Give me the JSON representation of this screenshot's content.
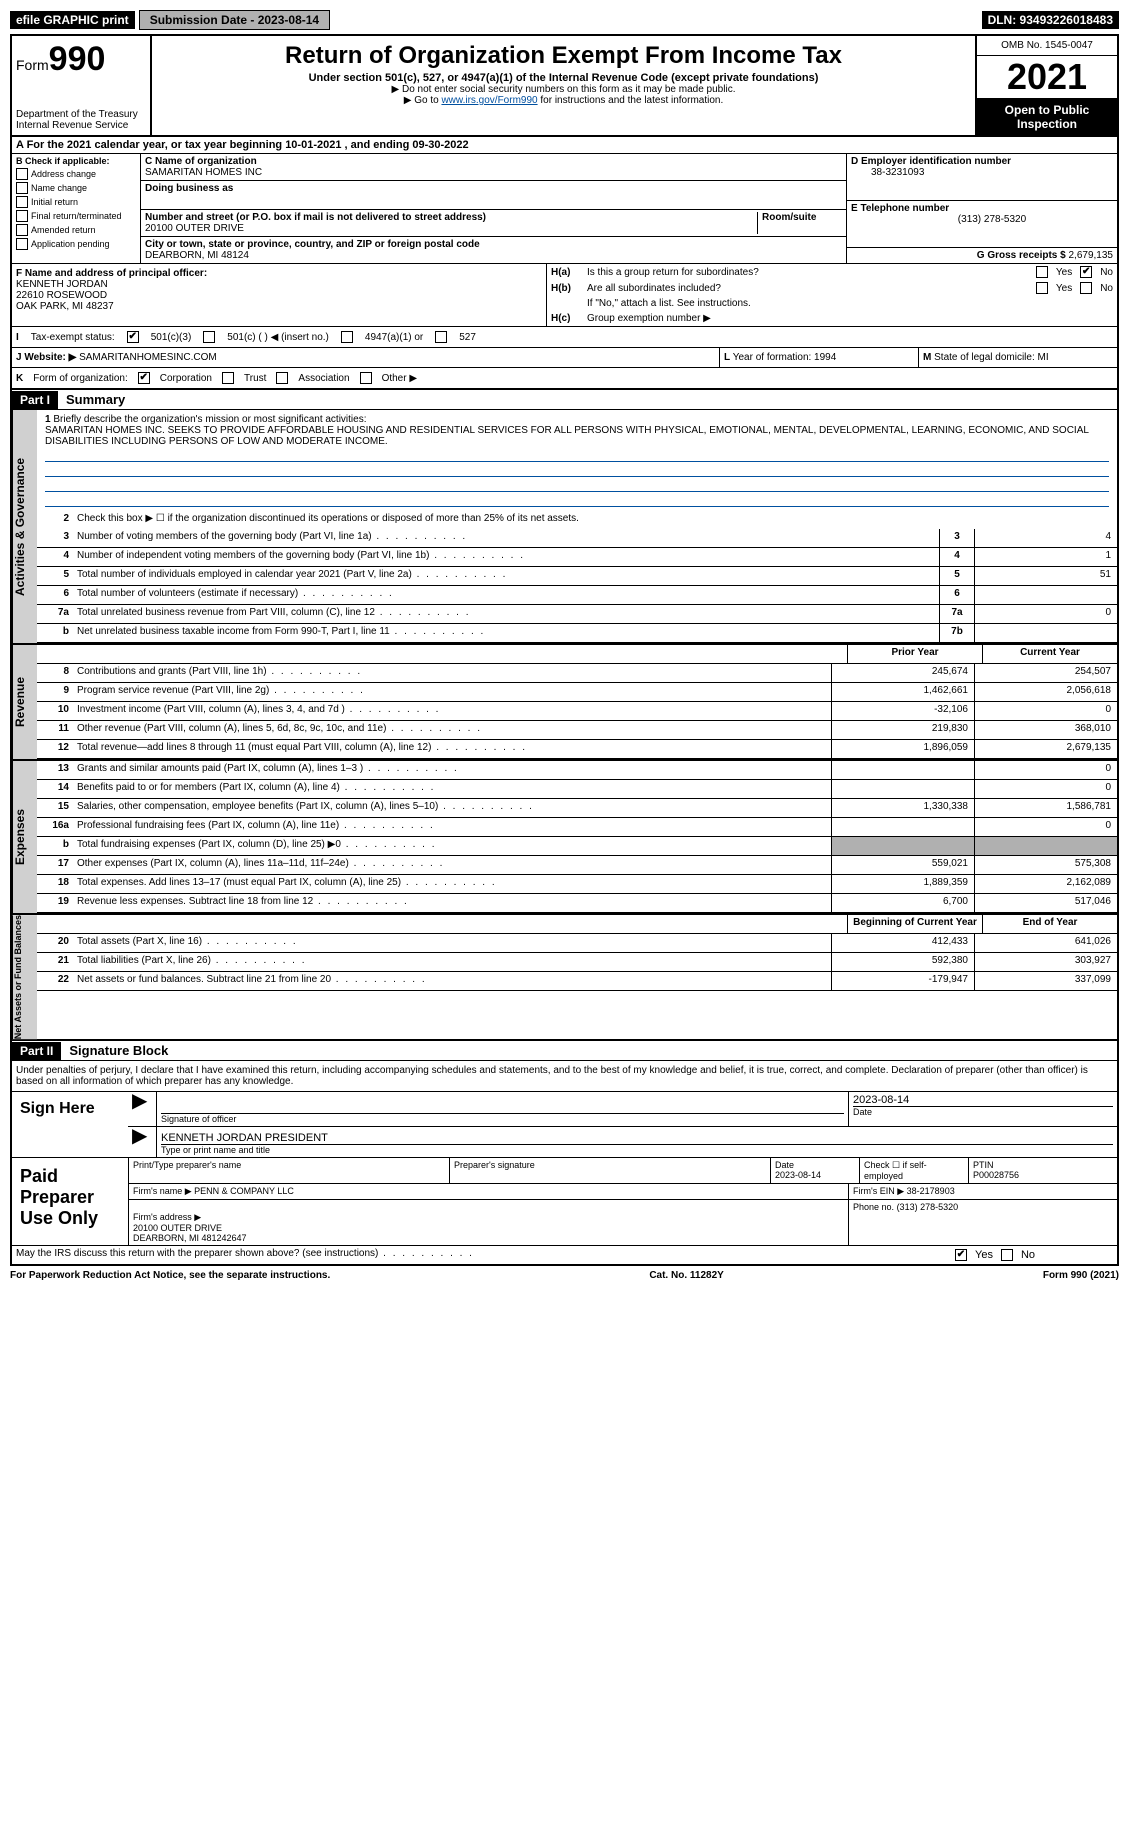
{
  "topbar": {
    "efile": "efile GRAPHIC print",
    "submit_btn": "Submission Date - 2023-08-14",
    "dln": "DLN: 93493226018483"
  },
  "header": {
    "form_word": "Form",
    "form_num": "990",
    "dept": "Department of the Treasury\nInternal Revenue Service",
    "title": "Return of Organization Exempt From Income Tax",
    "subtitle": "Under section 501(c), 527, or 4947(a)(1) of the Internal Revenue Code (except private foundations)",
    "note1": "▶ Do not enter social security numbers on this form as it may be made public.",
    "note2_pre": "▶ Go to ",
    "note2_link": "www.irs.gov/Form990",
    "note2_post": " for instructions and the latest information.",
    "omb": "OMB No. 1545-0047",
    "year": "2021",
    "inspection": "Open to Public Inspection"
  },
  "period": "A For the 2021 calendar year, or tax year beginning 10-01-2021     , and ending 09-30-2022",
  "box_b": {
    "legend": "B Check if applicable:",
    "items": [
      "Address change",
      "Name change",
      "Initial return",
      "Final return/terminated",
      "Amended return",
      "Application pending"
    ]
  },
  "box_c": {
    "name_label": "C Name of organization",
    "name": "SAMARITAN HOMES INC",
    "dba_label": "Doing business as",
    "addr_label": "Number and street (or P.O. box if mail is not delivered to street address)",
    "room_label": "Room/suite",
    "addr": "20100 OUTER DRIVE",
    "city_label": "City or town, state or province, country, and ZIP or foreign postal code",
    "city": "DEARBORN, MI  48124"
  },
  "box_d": {
    "label": "D Employer identification number",
    "val": "38-3231093"
  },
  "box_e": {
    "label": "E Telephone number",
    "val": "(313) 278-5320"
  },
  "box_g": {
    "label": "G Gross receipts $",
    "val": "2,679,135"
  },
  "box_f": {
    "label": "F Name and address of principal officer:",
    "name": "KENNETH JORDAN",
    "addr1": "22610 ROSEWOOD",
    "addr2": "OAK PARK, MI  48237"
  },
  "box_h": {
    "a_label": "H(a)",
    "a_q": "Is this a group return for subordinates?",
    "b_label": "H(b)",
    "b_q": "Are all subordinates included?",
    "b_note": "If \"No,\" attach a list. See instructions.",
    "c_label": "H(c)",
    "c_q": "Group exemption number ▶",
    "yes": "Yes",
    "no": "No"
  },
  "row_i": {
    "label": "I",
    "text": "Tax-exempt status:",
    "opt1": "501(c)(3)",
    "opt2": "501(c) (   ) ◀ (insert no.)",
    "opt3": "4947(a)(1) or",
    "opt4": "527"
  },
  "row_j": {
    "label": "J",
    "text": "Website: ▶",
    "val": "SAMARITANHOMESINC.COM"
  },
  "row_k": {
    "label": "K",
    "text": "Form of organization:",
    "opts": [
      "Corporation",
      "Trust",
      "Association",
      "Other ▶"
    ]
  },
  "row_l": {
    "label": "L",
    "text": "Year of formation: 1994"
  },
  "row_m": {
    "label": "M",
    "text": "State of legal domicile: MI"
  },
  "part1": {
    "bar": "Part I",
    "title": "Summary"
  },
  "summary": {
    "l1_label": "1",
    "l1": "Briefly describe the organization's mission or most significant activities:",
    "l1_text": "SAMARITAN HOMES INC. SEEKS TO PROVIDE AFFORDABLE HOUSING AND RESIDENTIAL SERVICES FOR ALL PERSONS WITH PHYSICAL, EMOTIONAL, MENTAL, DEVELOPMENTAL, LEARNING, ECONOMIC, AND SOCIAL DISABILITIES INCLUDING PERSONS OF LOW AND MODERATE INCOME.",
    "l2_label": "2",
    "l2": "Check this box ▶ ☐ if the organization discontinued its operations or disposed of more than 25% of its net assets.",
    "vtab_gov": "Activities & Governance",
    "vtab_rev": "Revenue",
    "vtab_exp": "Expenses",
    "vtab_net": "Net Assets or Fund Balances",
    "prior": "Prior Year",
    "current": "Current Year",
    "begin": "Beginning of Current Year",
    "end": "End of Year"
  },
  "lines_gov": [
    {
      "n": "3",
      "d": "Number of voting members of the governing body (Part VI, line 1a)",
      "c": "3",
      "v": "4"
    },
    {
      "n": "4",
      "d": "Number of independent voting members of the governing body (Part VI, line 1b)",
      "c": "4",
      "v": "1"
    },
    {
      "n": "5",
      "d": "Total number of individuals employed in calendar year 2021 (Part V, line 2a)",
      "c": "5",
      "v": "51"
    },
    {
      "n": "6",
      "d": "Total number of volunteers (estimate if necessary)",
      "c": "6",
      "v": ""
    },
    {
      "n": "7a",
      "d": "Total unrelated business revenue from Part VIII, column (C), line 12",
      "c": "7a",
      "v": "0"
    },
    {
      "n": "b",
      "d": "Net unrelated business taxable income from Form 990-T, Part I, line 11",
      "c": "7b",
      "v": ""
    }
  ],
  "lines_rev": [
    {
      "n": "8",
      "d": "Contributions and grants (Part VIII, line 1h)",
      "p": "245,674",
      "c": "254,507"
    },
    {
      "n": "9",
      "d": "Program service revenue (Part VIII, line 2g)",
      "p": "1,462,661",
      "c": "2,056,618"
    },
    {
      "n": "10",
      "d": "Investment income (Part VIII, column (A), lines 3, 4, and 7d )",
      "p": "-32,106",
      "c": "0"
    },
    {
      "n": "11",
      "d": "Other revenue (Part VIII, column (A), lines 5, 6d, 8c, 9c, 10c, and 11e)",
      "p": "219,830",
      "c": "368,010"
    },
    {
      "n": "12",
      "d": "Total revenue—add lines 8 through 11 (must equal Part VIII, column (A), line 12)",
      "p": "1,896,059",
      "c": "2,679,135"
    }
  ],
  "lines_exp": [
    {
      "n": "13",
      "d": "Grants and similar amounts paid (Part IX, column (A), lines 1–3 )",
      "p": "",
      "c": "0"
    },
    {
      "n": "14",
      "d": "Benefits paid to or for members (Part IX, column (A), line 4)",
      "p": "",
      "c": "0"
    },
    {
      "n": "15",
      "d": "Salaries, other compensation, employee benefits (Part IX, column (A), lines 5–10)",
      "p": "1,330,338",
      "c": "1,586,781"
    },
    {
      "n": "16a",
      "d": "Professional fundraising fees (Part IX, column (A), line 11e)",
      "p": "",
      "c": "0"
    },
    {
      "n": "b",
      "d": "Total fundraising expenses (Part IX, column (D), line 25) ▶0",
      "p": "grey",
      "c": "grey"
    },
    {
      "n": "17",
      "d": "Other expenses (Part IX, column (A), lines 11a–11d, 11f–24e)",
      "p": "559,021",
      "c": "575,308"
    },
    {
      "n": "18",
      "d": "Total expenses. Add lines 13–17 (must equal Part IX, column (A), line 25)",
      "p": "1,889,359",
      "c": "2,162,089"
    },
    {
      "n": "19",
      "d": "Revenue less expenses. Subtract line 18 from line 12",
      "p": "6,700",
      "c": "517,046"
    }
  ],
  "lines_net": [
    {
      "n": "20",
      "d": "Total assets (Part X, line 16)",
      "p": "412,433",
      "c": "641,026"
    },
    {
      "n": "21",
      "d": "Total liabilities (Part X, line 26)",
      "p": "592,380",
      "c": "303,927"
    },
    {
      "n": "22",
      "d": "Net assets or fund balances. Subtract line 21 from line 20",
      "p": "-179,947",
      "c": "337,099"
    }
  ],
  "part2": {
    "bar": "Part II",
    "title": "Signature Block",
    "decl": "Under penalties of perjury, I declare that I have examined this return, including accompanying schedules and statements, and to the best of my knowledge and belief, it is true, correct, and complete. Declaration of preparer (other than officer) is based on all information of which preparer has any knowledge."
  },
  "sign": {
    "here": "Sign Here",
    "sig_label": "Signature of officer",
    "date_label": "Date",
    "date": "2023-08-14",
    "name": "KENNETH JORDAN  PRESIDENT",
    "name_label": "Type or print name and title"
  },
  "paid": {
    "label": "Paid Preparer Use Only",
    "h1": "Print/Type preparer's name",
    "h2": "Preparer's signature",
    "h3": "Date",
    "h3v": "2023-08-14",
    "h4": "Check ☐ if self-employed",
    "h5": "PTIN",
    "h5v": "P00028756",
    "firm_label": "Firm's name     ▶",
    "firm": "PENN & COMPANY LLC",
    "ein_label": "Firm's EIN ▶",
    "ein": "38-2178903",
    "addr_label": "Firm's address ▶",
    "addr": "20100 OUTER DRIVE\nDEARBORN, MI  481242647",
    "phone_label": "Phone no.",
    "phone": "(313) 278-5320"
  },
  "discuss": {
    "q": "May the IRS discuss this return with the preparer shown above? (see instructions)",
    "yes": "Yes",
    "no": "No"
  },
  "footer": {
    "left": "For Paperwork Reduction Act Notice, see the separate instructions.",
    "mid": "Cat. No. 11282Y",
    "right": "Form 990 (2021)"
  }
}
